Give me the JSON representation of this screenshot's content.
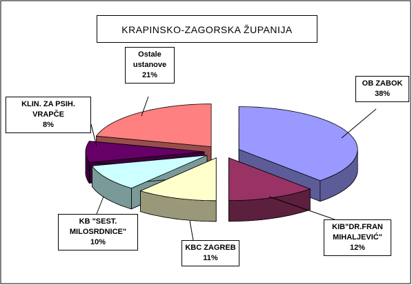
{
  "chart_data": {
    "type": "pie",
    "title": "KRAPINSKO-ZAGORSKA ŽUPANIJA",
    "categories": [
      "OB ZABOK",
      "KIB\"DR.FRAN MIHALJEVIĆ\"",
      "KBC ZAGREB",
      "KB \"SEST. MILOSRDNICE\"",
      "KLIN. ZA PSIH. VRAPČE",
      "Ostale ustanove"
    ],
    "values": [
      38,
      12,
      11,
      10,
      8,
      21
    ],
    "value_labels": [
      "38%",
      "12%",
      "11%",
      "10%",
      "8%",
      "21%"
    ],
    "colors": [
      "#9999ff",
      "#993366",
      "#ffffcc",
      "#ccffff",
      "#660066",
      "#ff8080"
    ]
  }
}
